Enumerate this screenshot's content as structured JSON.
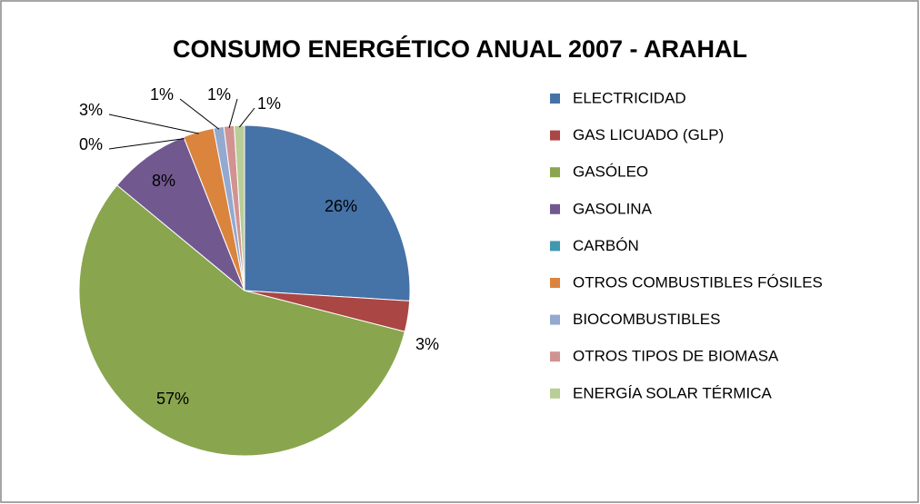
{
  "chart_data": {
    "type": "pie",
    "title": "CONSUMO ENERGÉTICO ANUAL  2007 - ARAHAL",
    "categories": [
      "ELECTRICIDAD",
      "GAS LICUADO (GLP)",
      "GASÓLEO",
      "GASOLINA",
      "CARBÓN",
      "OTROS COMBUSTIBLES FÓSILES",
      "BIOCOMBUSTIBLES",
      "OTROS TIPOS DE BIOMASA",
      "ENERGÍA SOLAR TÉRMICA"
    ],
    "values": [
      26,
      3,
      57,
      8,
      0,
      3,
      1,
      1,
      1
    ],
    "value_labels": [
      "26%",
      "3%",
      "57%",
      "8%",
      "0%",
      "3%",
      "1%",
      "1%",
      "1%"
    ],
    "colors": [
      "#4572A7",
      "#AA4643",
      "#89A54E",
      "#71588F",
      "#4198AF",
      "#DB843D",
      "#93A9CF",
      "#D19392",
      "#B9CD96"
    ],
    "legend": "right"
  }
}
